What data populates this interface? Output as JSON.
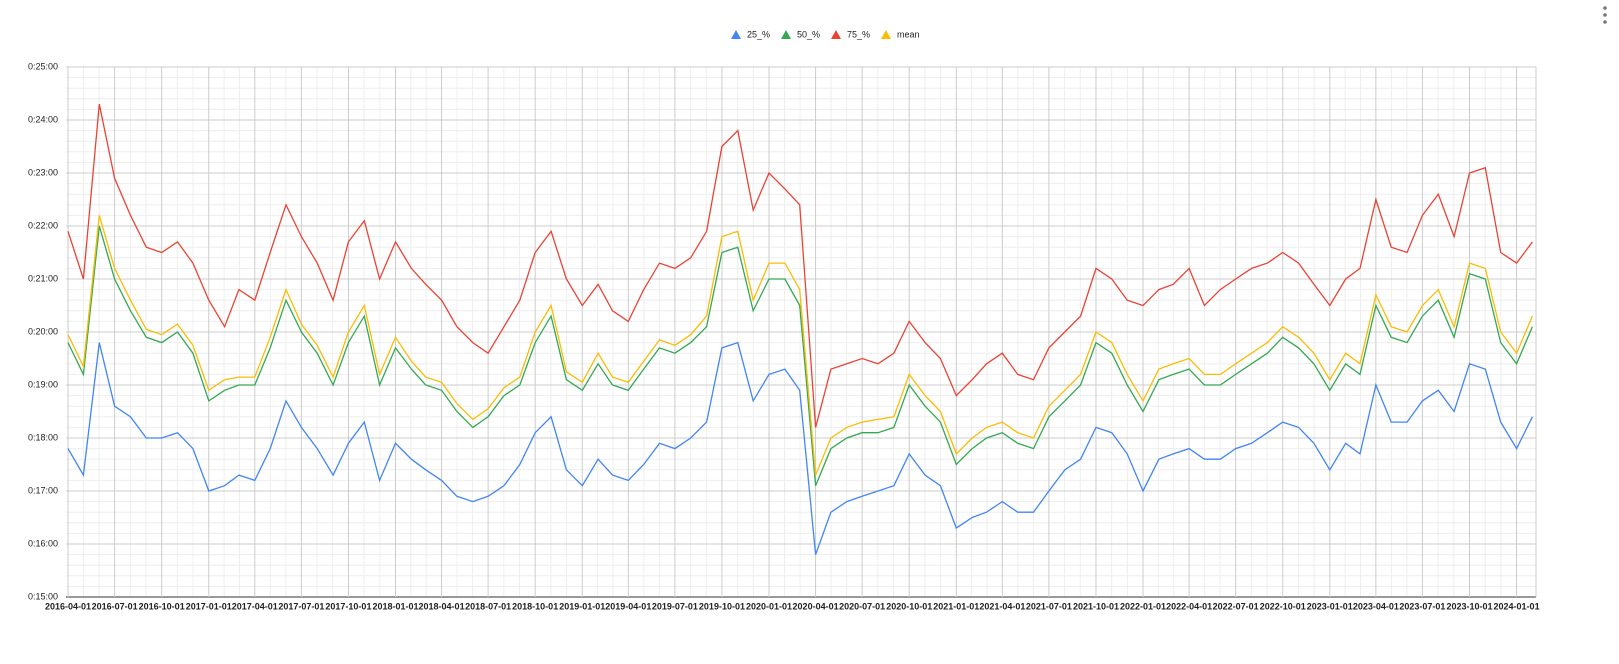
{
  "chart_data": {
    "type": "line",
    "x": [
      "2016-04-01",
      "2016-05-01",
      "2016-06-01",
      "2016-07-01",
      "2016-08-01",
      "2016-09-01",
      "2016-10-01",
      "2016-11-01",
      "2016-12-01",
      "2017-01-01",
      "2017-02-01",
      "2017-03-01",
      "2017-04-01",
      "2017-05-01",
      "2017-06-01",
      "2017-07-01",
      "2017-08-01",
      "2017-09-01",
      "2017-10-01",
      "2017-11-01",
      "2017-12-01",
      "2018-01-01",
      "2018-02-01",
      "2018-03-01",
      "2018-04-01",
      "2018-05-01",
      "2018-06-01",
      "2018-07-01",
      "2018-08-01",
      "2018-09-01",
      "2018-10-01",
      "2018-11-01",
      "2018-12-01",
      "2019-01-01",
      "2019-02-01",
      "2019-03-01",
      "2019-04-01",
      "2019-05-01",
      "2019-06-01",
      "2019-07-01",
      "2019-08-01",
      "2019-09-01",
      "2019-10-01",
      "2019-11-01",
      "2019-12-01",
      "2020-01-01",
      "2020-02-01",
      "2020-03-01",
      "2020-04-01",
      "2020-05-01",
      "2020-06-01",
      "2020-07-01",
      "2020-08-01",
      "2020-09-01",
      "2020-10-01",
      "2020-11-01",
      "2020-12-01",
      "2021-01-01",
      "2021-02-01",
      "2021-03-01",
      "2021-04-01",
      "2021-05-01",
      "2021-06-01",
      "2021-07-01",
      "2021-08-01",
      "2021-09-01",
      "2021-10-01",
      "2021-11-01",
      "2021-12-01",
      "2022-01-01",
      "2022-02-01",
      "2022-03-01",
      "2022-04-01",
      "2022-05-01",
      "2022-06-01",
      "2022-07-01",
      "2022-08-01",
      "2022-09-01",
      "2022-10-01",
      "2022-11-01",
      "2022-12-01",
      "2023-01-01",
      "2023-02-01",
      "2023-03-01",
      "2023-04-01",
      "2023-05-01",
      "2023-06-01",
      "2023-07-01",
      "2023-08-01",
      "2023-09-01",
      "2023-10-01",
      "2023-11-01",
      "2023-12-01",
      "2024-01-01",
      "2024-02-01"
    ],
    "series": [
      {
        "name": "25_%",
        "color": "#4285f4",
        "values": [
          17.8,
          17.3,
          19.8,
          18.6,
          18.4,
          18.0,
          18.0,
          18.1,
          17.8,
          17.0,
          17.1,
          17.3,
          17.2,
          17.8,
          18.7,
          18.2,
          17.8,
          17.3,
          17.9,
          18.3,
          17.2,
          17.9,
          17.6,
          17.4,
          17.2,
          16.9,
          16.8,
          16.9,
          17.1,
          17.5,
          18.1,
          18.4,
          17.4,
          17.1,
          17.6,
          17.3,
          17.2,
          17.5,
          17.9,
          17.8,
          18.0,
          18.3,
          19.7,
          19.8,
          18.7,
          19.2,
          19.3,
          18.9,
          15.8,
          16.6,
          16.8,
          16.9,
          17.0,
          17.1,
          17.7,
          17.3,
          17.1,
          16.3,
          16.5,
          16.6,
          16.8,
          16.6,
          16.6,
          17.0,
          17.4,
          17.6,
          18.2,
          18.1,
          17.7,
          17.0,
          17.6,
          17.7,
          17.8,
          17.6,
          17.6,
          17.8,
          17.9,
          18.1,
          18.3,
          18.2,
          17.9,
          17.4,
          17.9,
          17.7,
          19.0,
          18.3,
          18.3,
          18.7,
          18.9,
          18.5,
          19.4,
          19.3,
          18.3,
          17.8,
          18.4
        ]
      },
      {
        "name": "50_%",
        "color": "#34a853",
        "values": [
          19.8,
          19.2,
          22.0,
          21.0,
          20.4,
          19.9,
          19.8,
          20.0,
          19.6,
          18.7,
          18.9,
          19.0,
          19.0,
          19.7,
          20.6,
          20.0,
          19.6,
          19.0,
          19.8,
          20.3,
          19.0,
          19.7,
          19.3,
          19.0,
          18.9,
          18.5,
          18.2,
          18.4,
          18.8,
          19.0,
          19.8,
          20.3,
          19.1,
          18.9,
          19.4,
          19.0,
          18.9,
          19.3,
          19.7,
          19.6,
          19.8,
          20.1,
          21.5,
          21.6,
          20.4,
          21.0,
          21.0,
          20.5,
          17.1,
          17.8,
          18.0,
          18.1,
          18.1,
          18.2,
          19.0,
          18.6,
          18.3,
          17.5,
          17.8,
          18.0,
          18.1,
          17.9,
          17.8,
          18.4,
          18.7,
          19.0,
          19.8,
          19.6,
          19.0,
          18.5,
          19.1,
          19.2,
          19.3,
          19.0,
          19.0,
          19.2,
          19.4,
          19.6,
          19.9,
          19.7,
          19.4,
          18.9,
          19.4,
          19.2,
          20.5,
          19.9,
          19.8,
          20.3,
          20.6,
          19.9,
          21.1,
          21.0,
          19.8,
          19.4,
          20.1
        ]
      },
      {
        "name": "75_%",
        "color": "#ea4335",
        "values": [
          21.9,
          21.0,
          24.3,
          22.9,
          22.2,
          21.6,
          21.5,
          21.7,
          21.3,
          20.6,
          20.1,
          20.8,
          20.6,
          21.5,
          22.4,
          21.8,
          21.3,
          20.6,
          21.7,
          22.1,
          21.0,
          21.7,
          21.2,
          20.9,
          20.6,
          20.1,
          19.8,
          19.6,
          20.1,
          20.6,
          21.5,
          21.9,
          21.0,
          20.5,
          20.9,
          20.4,
          20.2,
          20.8,
          21.3,
          21.2,
          21.4,
          21.9,
          23.5,
          23.8,
          22.3,
          23.0,
          22.7,
          22.4,
          18.2,
          19.3,
          19.4,
          19.5,
          19.4,
          19.6,
          20.2,
          19.8,
          19.5,
          18.8,
          19.1,
          19.4,
          19.6,
          19.2,
          19.1,
          19.7,
          20.0,
          20.3,
          21.2,
          21.0,
          20.6,
          20.5,
          20.8,
          20.9,
          21.2,
          20.5,
          20.8,
          21.0,
          21.2,
          21.3,
          21.5,
          21.3,
          20.9,
          20.5,
          21.0,
          21.2,
          22.5,
          21.6,
          21.5,
          22.2,
          22.6,
          21.8,
          23.0,
          23.1,
          21.5,
          21.3,
          21.7
        ]
      },
      {
        "name": "mean",
        "color": "#fbbc04",
        "values": [
          19.95,
          19.35,
          22.2,
          21.2,
          20.6,
          20.05,
          19.95,
          20.15,
          19.75,
          18.9,
          19.1,
          19.15,
          19.15,
          19.9,
          20.8,
          20.15,
          19.75,
          19.15,
          20.0,
          20.5,
          19.2,
          19.9,
          19.45,
          19.15,
          19.05,
          18.65,
          18.35,
          18.55,
          18.95,
          19.15,
          20.0,
          20.5,
          19.25,
          19.05,
          19.6,
          19.15,
          19.05,
          19.45,
          19.85,
          19.75,
          19.95,
          20.3,
          21.8,
          21.9,
          20.6,
          21.3,
          21.3,
          20.8,
          17.3,
          18.0,
          18.2,
          18.3,
          18.35,
          18.4,
          19.2,
          18.8,
          18.5,
          17.7,
          18.0,
          18.2,
          18.3,
          18.1,
          18.0,
          18.6,
          18.9,
          19.2,
          20.0,
          19.8,
          19.2,
          18.7,
          19.3,
          19.4,
          19.5,
          19.2,
          19.2,
          19.4,
          19.6,
          19.8,
          20.1,
          19.9,
          19.6,
          19.1,
          19.6,
          19.4,
          20.7,
          20.1,
          20.0,
          20.5,
          20.8,
          20.1,
          21.3,
          21.2,
          20.0,
          19.6,
          20.3
        ]
      }
    ],
    "xlim": [
      "2016-03-28",
      "2024-02-08"
    ],
    "xticks": [
      "2016-04-01",
      "2016-07-01",
      "2016-10-01",
      "2017-01-01",
      "2017-04-01",
      "2017-07-01",
      "2017-10-01",
      "2018-01-01",
      "2018-04-01",
      "2018-07-01",
      "2018-10-01",
      "2019-01-01",
      "2019-04-01",
      "2019-07-01",
      "2019-10-01",
      "2020-01-01",
      "2020-04-01",
      "2020-07-01",
      "2020-10-01",
      "2021-01-01",
      "2021-04-01",
      "2021-07-01",
      "2021-10-01",
      "2022-01-01",
      "2022-04-01",
      "2022-07-01",
      "2022-10-01",
      "2023-01-01",
      "2023-04-01",
      "2023-07-01",
      "2023-10-01",
      "2024-01-01"
    ],
    "ylim": [
      15,
      25
    ],
    "yticks": [
      {
        "value": 15,
        "label": "0:15:00"
      },
      {
        "value": 16,
        "label": "0:16:00"
      },
      {
        "value": 17,
        "label": "0:17:00"
      },
      {
        "value": 18,
        "label": "0:18:00"
      },
      {
        "value": 19,
        "label": "0:19:00"
      },
      {
        "value": 20,
        "label": "0:20:00"
      },
      {
        "value": 21,
        "label": "0:21:00"
      },
      {
        "value": 22,
        "label": "0:22:00"
      },
      {
        "value": 23,
        "label": "0:23:00"
      },
      {
        "value": 24,
        "label": "0:24:00"
      },
      {
        "value": 25,
        "label": "0:25:00"
      }
    ],
    "grid": true,
    "minor_grid": true,
    "legend": "top"
  }
}
